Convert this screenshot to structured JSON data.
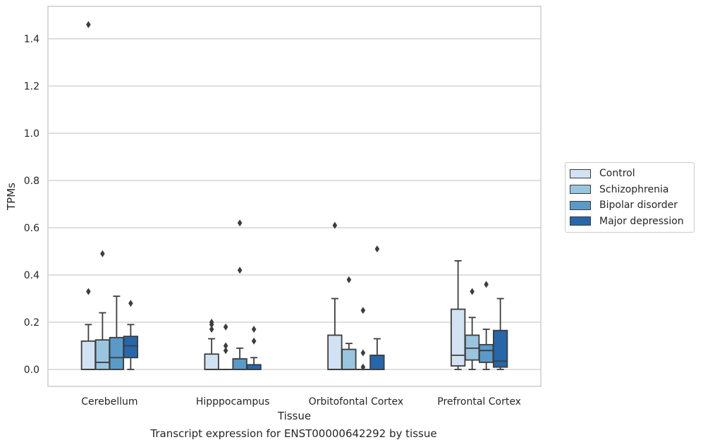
{
  "chart_data": {
    "type": "box",
    "title": "Transcript expression for ENST00000642292 by tissue",
    "xlabel": "Tissue",
    "ylabel": "TPMs",
    "ylim": [
      -0.07,
      1.54
    ],
    "yticks": [
      "0.0",
      "0.2",
      "0.4",
      "0.6",
      "0.8",
      "1.0",
      "1.2",
      "1.4"
    ],
    "grid": "horizontal",
    "legend_position": "right",
    "categories": [
      "Cerebellum",
      "Hipppocampus",
      "Orbitofontal Cortex",
      "Prefrontal Cortex"
    ],
    "series": [
      {
        "name": "Control",
        "color": "#d1e2f2",
        "boxes": [
          {
            "whislo": 0.0,
            "q1": 0.0,
            "med": 0.0,
            "q3": 0.12,
            "whishi": 0.19,
            "fliers": [
              1.46,
              0.33
            ]
          },
          {
            "whislo": 0.0,
            "q1": 0.0,
            "med": 0.0,
            "q3": 0.065,
            "whishi": 0.13,
            "fliers": [
              0.2,
              0.19,
              0.17
            ]
          },
          {
            "whislo": 0.0,
            "q1": 0.0,
            "med": 0.0,
            "q3": 0.145,
            "whishi": 0.3,
            "fliers": [
              0.61
            ]
          },
          {
            "whislo": 0.0,
            "q1": 0.015,
            "med": 0.06,
            "q3": 0.255,
            "whishi": 0.46,
            "fliers": []
          }
        ]
      },
      {
        "name": "Schizophrenia",
        "color": "#9ac5de",
        "boxes": [
          {
            "whislo": 0.0,
            "q1": 0.0,
            "med": 0.03,
            "q3": 0.125,
            "whishi": 0.24,
            "fliers": [
              0.49
            ]
          },
          {
            "whislo": 0.0,
            "q1": 0.0,
            "med": 0.0,
            "q3": 0.0,
            "whishi": 0.0,
            "fliers": [
              0.18,
              0.1,
              0.08
            ]
          },
          {
            "whislo": 0.0,
            "q1": 0.0,
            "med": 0.0,
            "q3": 0.085,
            "whishi": 0.11,
            "fliers": [
              0.38
            ]
          },
          {
            "whislo": 0.0,
            "q1": 0.04,
            "med": 0.09,
            "q3": 0.145,
            "whishi": 0.22,
            "fliers": [
              0.33
            ]
          }
        ]
      },
      {
        "name": "Bipolar disorder",
        "color": "#5a9ac8",
        "boxes": [
          {
            "whislo": 0.0,
            "q1": 0.0,
            "med": 0.05,
            "q3": 0.135,
            "whishi": 0.31,
            "fliers": []
          },
          {
            "whislo": 0.0,
            "q1": 0.0,
            "med": 0.0,
            "q3": 0.045,
            "whishi": 0.09,
            "fliers": [
              0.62,
              0.42
            ]
          },
          {
            "whislo": 0.0,
            "q1": 0.0,
            "med": 0.0,
            "q3": 0.0,
            "whishi": 0.0,
            "fliers": [
              0.25,
              0.07,
              0.01
            ]
          },
          {
            "whislo": 0.0,
            "q1": 0.03,
            "med": 0.08,
            "q3": 0.105,
            "whishi": 0.17,
            "fliers": [
              0.36
            ]
          }
        ]
      },
      {
        "name": "Major depression",
        "color": "#2667aa",
        "boxes": [
          {
            "whislo": 0.0,
            "q1": 0.05,
            "med": 0.1,
            "q3": 0.14,
            "whishi": 0.19,
            "fliers": [
              0.28
            ]
          },
          {
            "whislo": 0.0,
            "q1": 0.0,
            "med": 0.0,
            "q3": 0.02,
            "whishi": 0.05,
            "fliers": [
              0.17,
              0.12
            ]
          },
          {
            "whislo": 0.0,
            "q1": 0.0,
            "med": 0.0,
            "q3": 0.06,
            "whishi": 0.13,
            "fliers": [
              0.51
            ]
          },
          {
            "whislo": 0.0,
            "q1": 0.01,
            "med": 0.035,
            "q3": 0.165,
            "whishi": 0.3,
            "fliers": []
          }
        ]
      }
    ]
  }
}
